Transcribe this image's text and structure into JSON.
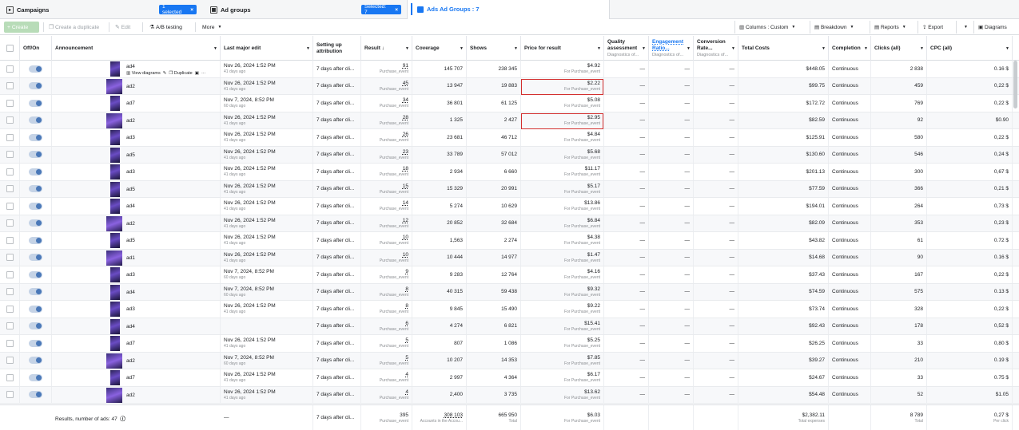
{
  "tabs": {
    "campaigns": {
      "label": "Campaigns",
      "badge": "1 selected"
    },
    "ad_groups": {
      "label": "Ad groups",
      "badge": "Selected: 7"
    },
    "ads": {
      "label": "Ads Ad Groups : 7"
    }
  },
  "toolbar": {
    "create": "Create",
    "duplicate": "Create a duplicate",
    "edit": "Edit",
    "ab": "A/B testing",
    "more": "More",
    "columns": "Columns : Custom",
    "breakdown": "Breakdown",
    "reports": "Reports",
    "export": "Export",
    "diagrams": "Diagrams"
  },
  "columns": {
    "offon": "Off/On",
    "announcement": "Announcement",
    "last_edit": "Last major edit",
    "attribution": "Setting up attribution",
    "result": "Result ↓",
    "coverage": "Coverage",
    "shows": "Shows",
    "price": "Price for result",
    "quality": "Quality assessment",
    "quality_sub": "Diagnostics of...",
    "engagement": "Engagement Ratio...",
    "engagement_sub": "Diagnostics of...",
    "conversion": "Conversion Rate...",
    "conversion_sub": "Diagnostics of...",
    "total": "Total Costs",
    "completion": "Completion",
    "clicks": "Clicks (all)",
    "cpc": "CPC (all)"
  },
  "row_tools": {
    "view": "View diagrams",
    "duplicate": "Duplicate"
  },
  "rows": [
    {
      "name": "ad4",
      "edit": "Nov 26, 2024 1:52 PM",
      "ago": "41 days ago",
      "attr": "7 days after cli...",
      "result": "91",
      "res_sub": "Purchase_event",
      "coverage": "145 707",
      "shows": "238 345",
      "price": "$4.92",
      "price_sub": "For Purchase_event",
      "q": "—",
      "e": "—",
      "cv": "—",
      "total": "$448.05",
      "completion": "Continuous",
      "clicks": "2 838",
      "cpc": "0.16 $"
    },
    {
      "name": "ad2",
      "edit": "Nov 26, 2024 1:52 PM",
      "ago": "41 days ago",
      "attr": "7 days after cli...",
      "result": "45",
      "res_sub": "Purchase_event",
      "coverage": "13 947",
      "shows": "19 883",
      "price": "$2.22",
      "price_sub": "For Purchase_event",
      "q": "—",
      "e": "—",
      "cv": "—",
      "total": "$99.75",
      "completion": "Continuous",
      "clicks": "459",
      "cpc": "0,22 $"
    },
    {
      "name": "ad7",
      "edit": "Nov 7, 2024, 8:52 PM",
      "ago": "60 days ago",
      "attr": "7 days after cli...",
      "result": "34",
      "res_sub": "Purchase_event",
      "coverage": "36 801",
      "shows": "61 125",
      "price": "$5.08",
      "price_sub": "For Purchase_event",
      "q": "—",
      "e": "—",
      "cv": "—",
      "total": "$172.72",
      "completion": "Continuous",
      "clicks": "769",
      "cpc": "0,22 $"
    },
    {
      "name": "ad2",
      "edit": "Nov 26, 2024 1:52 PM",
      "ago": "41 days ago",
      "attr": "7 days after cli...",
      "result": "28",
      "res_sub": "Purchase_event",
      "coverage": "1 325",
      "shows": "2 427",
      "price": "$2.95",
      "price_sub": "For Purchase_event",
      "q": "—",
      "e": "—",
      "cv": "—",
      "total": "$82.59",
      "completion": "Continuous",
      "clicks": "92",
      "cpc": "$0.90"
    },
    {
      "name": "ad3",
      "edit": "Nov 26, 2024 1:52 PM",
      "ago": "41 days ago",
      "attr": "7 days after cli...",
      "result": "26",
      "res_sub": "Purchase_event",
      "coverage": "23 681",
      "shows": "46 712",
      "price": "$4.84",
      "price_sub": "For Purchase_event",
      "q": "—",
      "e": "—",
      "cv": "—",
      "total": "$125.91",
      "completion": "Continuous",
      "clicks": "580",
      "cpc": "0,22 $"
    },
    {
      "name": "ad5",
      "edit": "Nov 26, 2024 1:52 PM",
      "ago": "41 days ago",
      "attr": "7 days after cli...",
      "result": "23",
      "res_sub": "Purchase_event",
      "coverage": "33 789",
      "shows": "57 012",
      "price": "$5.68",
      "price_sub": "For Purchase_event",
      "q": "—",
      "e": "—",
      "cv": "—",
      "total": "$130.60",
      "completion": "Continuous",
      "clicks": "546",
      "cpc": "0,24 $"
    },
    {
      "name": "ad3",
      "edit": "Nov 26, 2024 1:52 PM",
      "ago": "41 days ago",
      "attr": "7 days after cli...",
      "result": "18",
      "res_sub": "Purchase_event",
      "coverage": "2 934",
      "shows": "6 660",
      "price": "$11.17",
      "price_sub": "For Purchase_event",
      "q": "—",
      "e": "—",
      "cv": "—",
      "total": "$201.13",
      "completion": "Continuous",
      "clicks": "300",
      "cpc": "0,67 $"
    },
    {
      "name": "ad5",
      "edit": "Nov 26, 2024 1:52 PM",
      "ago": "41 days ago",
      "attr": "7 days after cli...",
      "result": "15",
      "res_sub": "Purchase_event",
      "coverage": "15 329",
      "shows": "20 991",
      "price": "$5.17",
      "price_sub": "For Purchase_event",
      "q": "—",
      "e": "—",
      "cv": "—",
      "total": "$77.59",
      "completion": "Continuous",
      "clicks": "366",
      "cpc": "0,21 $"
    },
    {
      "name": "ad4",
      "edit": "Nov 26, 2024 1:52 PM",
      "ago": "41 days ago",
      "attr": "7 days after cli...",
      "result": "14",
      "res_sub": "Purchase_event",
      "coverage": "5 274",
      "shows": "10 629",
      "price": "$13.86",
      "price_sub": "For Purchase_event",
      "q": "—",
      "e": "—",
      "cv": "—",
      "total": "$194.01",
      "completion": "Continuous",
      "clicks": "264",
      "cpc": "0,73 $"
    },
    {
      "name": "ad2",
      "edit": "Nov 26, 2024 1:52 PM",
      "ago": "41 days ago",
      "attr": "7 days after cli...",
      "result": "12",
      "res_sub": "Purchase_event",
      "coverage": "20 852",
      "shows": "32 684",
      "price": "$6.84",
      "price_sub": "For Purchase_event",
      "q": "—",
      "e": "—",
      "cv": "—",
      "total": "$82.09",
      "completion": "Continuous",
      "clicks": "353",
      "cpc": "0,23 $"
    },
    {
      "name": "ad5",
      "edit": "Nov 26, 2024 1:52 PM",
      "ago": "41 days ago",
      "attr": "7 days after cli...",
      "result": "10",
      "res_sub": "Purchase_event",
      "coverage": "1,563",
      "shows": "2 274",
      "price": "$4.38",
      "price_sub": "For Purchase_event",
      "q": "—",
      "e": "—",
      "cv": "—",
      "total": "$43.82",
      "completion": "Continuous",
      "clicks": "61",
      "cpc": "0.72 $"
    },
    {
      "name": "ad1",
      "edit": "Nov 26, 2024 1:52 PM",
      "ago": "41 days ago",
      "attr": "7 days after cli...",
      "result": "10",
      "res_sub": "Purchase_event",
      "coverage": "10 444",
      "shows": "14 977",
      "price": "$1.47",
      "price_sub": "For Purchase_event",
      "q": "—",
      "e": "—",
      "cv": "—",
      "total": "$14.68",
      "completion": "Continuous",
      "clicks": "90",
      "cpc": "0.16 $"
    },
    {
      "name": "ad3",
      "edit": "Nov 7, 2024, 8:52 PM",
      "ago": "60 days ago",
      "attr": "7 days after cli...",
      "result": "9",
      "res_sub": "Purchase_event",
      "coverage": "9 283",
      "shows": "12 764",
      "price": "$4.16",
      "price_sub": "For Purchase_event",
      "q": "—",
      "e": "—",
      "cv": "—",
      "total": "$37.43",
      "completion": "Continuous",
      "clicks": "167",
      "cpc": "0,22 $"
    },
    {
      "name": "ad4",
      "edit": "Nov 7, 2024, 8:52 PM",
      "ago": "60 days ago",
      "attr": "7 days after cli...",
      "result": "8",
      "res_sub": "Purchase_event",
      "coverage": "40 315",
      "shows": "59 438",
      "price": "$9.32",
      "price_sub": "For Purchase_event",
      "q": "—",
      "e": "—",
      "cv": "—",
      "total": "$74.59",
      "completion": "Continuous",
      "clicks": "575",
      "cpc": "0.13 $"
    },
    {
      "name": "ad3",
      "edit": "Nov 26, 2024 1:52 PM",
      "ago": "41 days ago",
      "attr": "7 days after cli...",
      "result": "8",
      "res_sub": "Purchase_event",
      "coverage": "9 845",
      "shows": "15 490",
      "price": "$9.22",
      "price_sub": "For Purchase_event",
      "q": "—",
      "e": "—",
      "cv": "—",
      "total": "$73.74",
      "completion": "Continuous",
      "clicks": "328",
      "cpc": "0,22 $"
    },
    {
      "name": "ad4",
      "edit": "",
      "ago": "",
      "attr": "7 days after cli...",
      "result": "6",
      "res_sub": "Purchase_event",
      "coverage": "4 274",
      "shows": "6 821",
      "price": "$15.41",
      "price_sub": "For Purchase_event",
      "q": "—",
      "e": "—",
      "cv": "—",
      "total": "$92.43",
      "completion": "Continuous",
      "clicks": "178",
      "cpc": "0,52 $"
    },
    {
      "name": "ad7",
      "edit": "Nov 26, 2024 1:52 PM",
      "ago": "41 days ago",
      "attr": "7 days after cli...",
      "result": "5",
      "res_sub": "Purchase_event",
      "coverage": "807",
      "shows": "1 086",
      "price": "$5.25",
      "price_sub": "For Purchase_event",
      "q": "—",
      "e": "—",
      "cv": "—",
      "total": "$26.25",
      "completion": "Continuous",
      "clicks": "33",
      "cpc": "0,80 $"
    },
    {
      "name": "ad2",
      "edit": "Nov 7, 2024, 8:52 PM",
      "ago": "60 days ago",
      "attr": "7 days after cli...",
      "result": "5",
      "res_sub": "Purchase_event",
      "coverage": "10 207",
      "shows": "14 353",
      "price": "$7.85",
      "price_sub": "For Purchase_event",
      "q": "—",
      "e": "—",
      "cv": "—",
      "total": "$39.27",
      "completion": "Continuous",
      "clicks": "210",
      "cpc": "0.19 $"
    },
    {
      "name": "ad7",
      "edit": "Nov 26, 2024 1:52 PM",
      "ago": "41 days ago",
      "attr": "7 days after cli...",
      "result": "4",
      "res_sub": "Purchase_event",
      "coverage": "2 997",
      "shows": "4 364",
      "price": "$6.17",
      "price_sub": "For Purchase_event",
      "q": "—",
      "e": "—",
      "cv": "—",
      "total": "$24.67",
      "completion": "Continuous",
      "clicks": "33",
      "cpc": "0.75 $"
    },
    {
      "name": "ad2",
      "edit": "Nov 26, 2024 1:52 PM",
      "ago": "41 days ago",
      "attr": "7 days after cli...",
      "result": "4",
      "res_sub": "Purchase_event",
      "coverage": "2,400",
      "shows": "3 735",
      "price": "$13.62",
      "price_sub": "For Purchase_event",
      "q": "—",
      "e": "—",
      "cv": "—",
      "total": "$54.48",
      "completion": "Continuous",
      "clicks": "52",
      "cpc": "$1.05"
    }
  ],
  "footer": {
    "label": "Results, number of ads: 47",
    "edit": "—",
    "attr": "7 days after cli...",
    "result": "395",
    "result_sub": "Purchase_event",
    "coverage": "308 103",
    "coverage_sub": "Accounts in the Accou...",
    "shows": "665 950",
    "shows_sub": "Total",
    "price": "$6.03",
    "price_sub": "For Purchase_event",
    "total": "$2,382.11",
    "total_sub": "Total expenses",
    "clicks": "8 789",
    "clicks_sub": "Total",
    "cpc": "0,27 $",
    "cpc_sub": "Per click"
  },
  "colors": {
    "accent": "#1877f2",
    "highlight": "#d32f2f",
    "create": "#b8dcb8"
  }
}
